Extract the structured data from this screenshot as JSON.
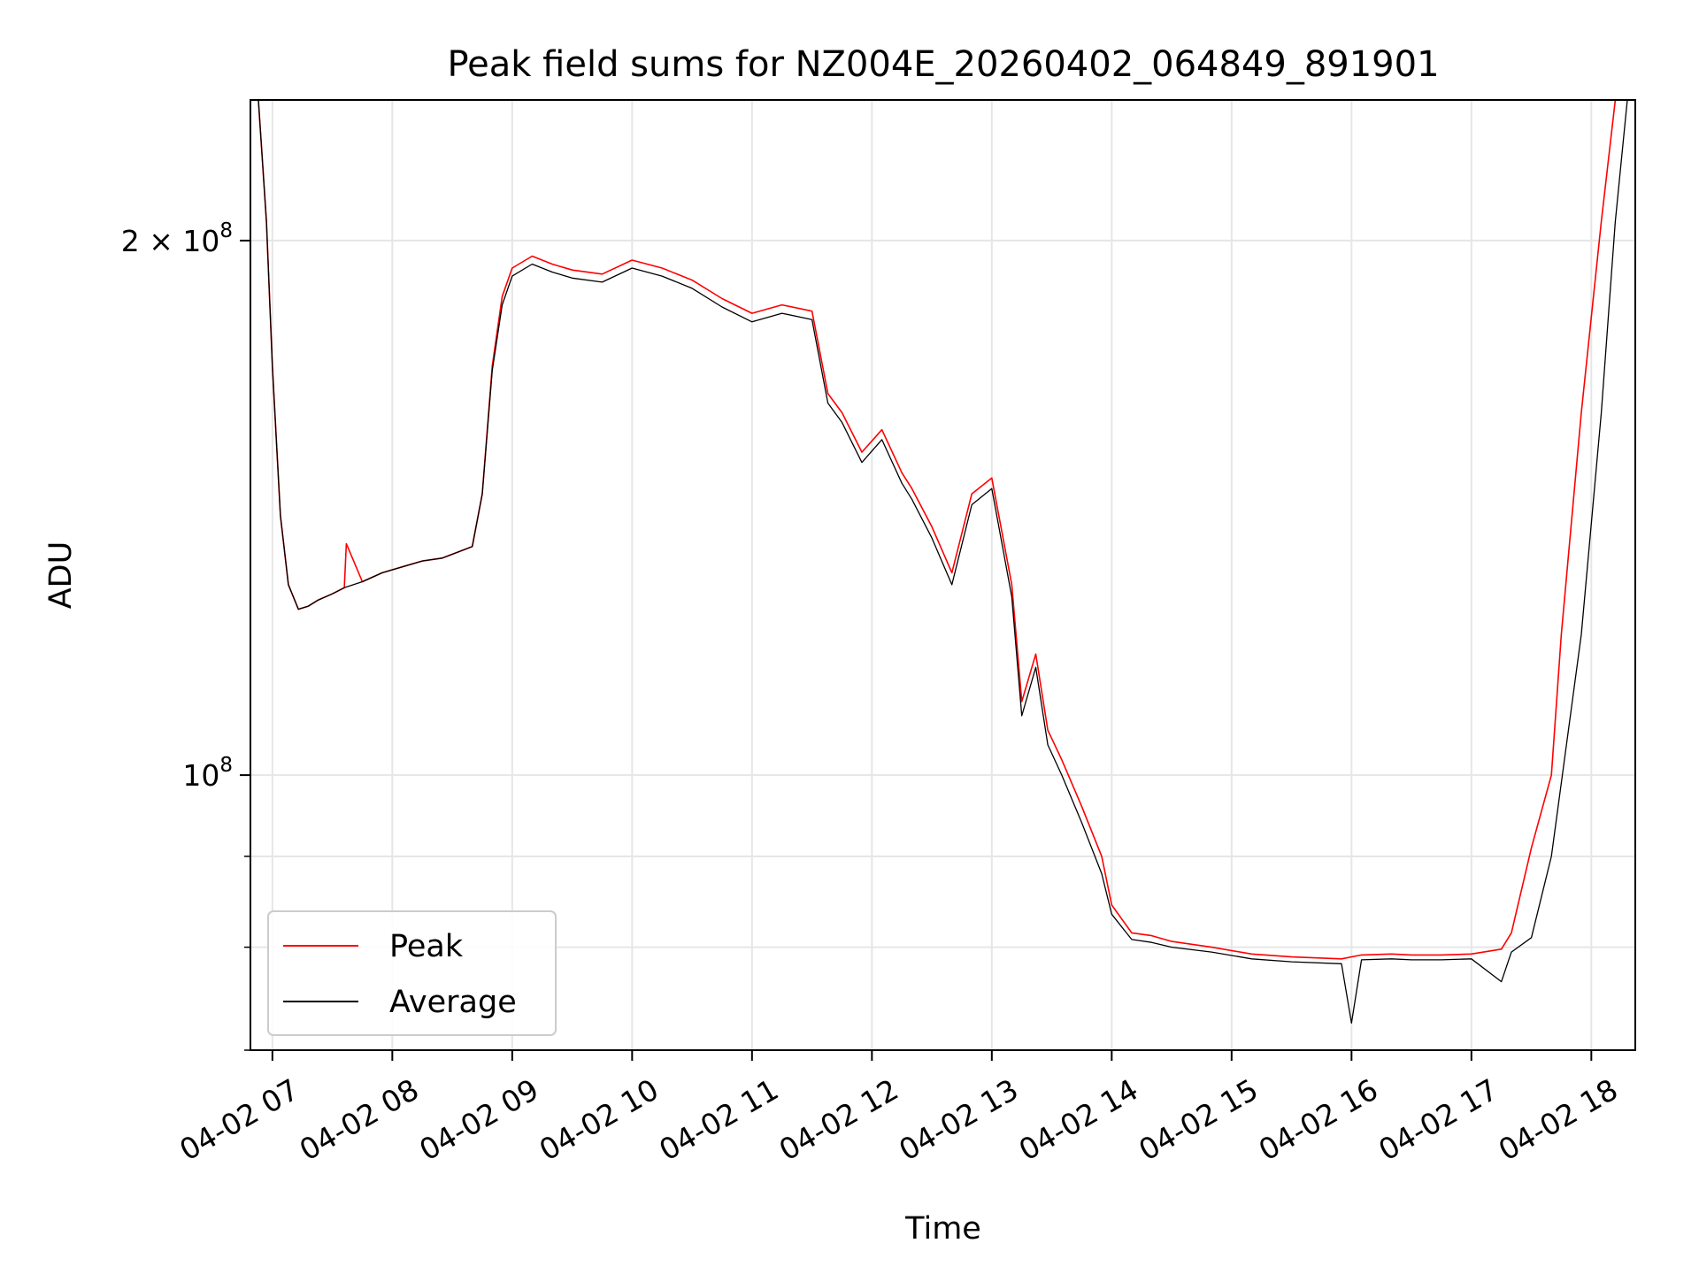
{
  "chart_data": {
    "type": "line",
    "title": "Peak field sums for NZ004E_20260402_064849_891901",
    "xlabel": "Time",
    "ylabel": "ADU",
    "y_scale": "log",
    "grid": true,
    "legend_position": "lower-left",
    "xlim": [
      "04-02 06:49",
      "04-02 18:22"
    ],
    "ylim": [
      70000000,
      240000000
    ],
    "x_ticks": [
      "04-02 07",
      "04-02 08",
      "04-02 09",
      "04-02 10",
      "04-02 11",
      "04-02 12",
      "04-02 13",
      "04-02 14",
      "04-02 15",
      "04-02 16",
      "04-02 17",
      "04-02 18"
    ],
    "y_ticks": [
      {
        "value": 100000000,
        "base": "10",
        "exp": "8",
        "coef": ""
      },
      {
        "value": 200000000,
        "base": "10",
        "exp": "8",
        "coef": "2 × "
      }
    ],
    "y_minor_ticks": [
      70000000,
      80000000,
      90000000
    ],
    "series": [
      {
        "name": "Peak",
        "color": "#ff0000",
        "x": [
          "06:53",
          "06:57",
          "07:00",
          "07:04",
          "07:08",
          "07:13",
          "07:18",
          "07:23",
          "07:30",
          "07:36",
          "07:37",
          "07:45",
          "07:55",
          "08:05",
          "08:15",
          "08:25",
          "08:40",
          "08:45",
          "08:50",
          "08:55",
          "09:00",
          "09:10",
          "09:20",
          "09:30",
          "09:45",
          "10:00",
          "10:15",
          "10:30",
          "10:45",
          "11:00",
          "11:15",
          "11:30",
          "11:38",
          "11:45",
          "11:55",
          "12:05",
          "12:15",
          "12:20",
          "12:30",
          "12:40",
          "12:50",
          "13:00",
          "13:10",
          "13:15",
          "13:22",
          "13:28",
          "13:35",
          "13:45",
          "13:55",
          "14:00",
          "14:10",
          "14:20",
          "14:30",
          "14:50",
          "15:10",
          "15:30",
          "15:55",
          "16:05",
          "16:20",
          "16:30",
          "16:45",
          "17:00",
          "17:15",
          "17:20",
          "17:30",
          "17:40",
          "17:45",
          "17:55",
          "18:05",
          "18:12",
          "18:18",
          "18:22"
        ],
        "y": [
          240000000,
          205000000,
          170000000,
          140000000,
          128000000,
          124000000,
          124500000,
          125500000,
          126500000,
          127500000,
          135000000,
          128500000,
          130000000,
          131000000,
          132000000,
          132500000,
          134500000,
          144000000,
          170000000,
          186000000,
          193000000,
          196000000,
          194000000,
          192500000,
          191500000,
          195000000,
          193000000,
          190000000,
          185500000,
          182000000,
          184000000,
          182500000,
          164000000,
          160000000,
          152000000,
          156500000,
          148000000,
          145000000,
          138000000,
          130000000,
          144000000,
          147000000,
          128000000,
          110000000,
          117000000,
          106000000,
          102000000,
          96000000,
          90000000,
          84500000,
          81500000,
          81200000,
          80600000,
          80000000,
          79300000,
          79000000,
          78800000,
          79200000,
          79300000,
          79200000,
          79200000,
          79300000,
          79800000,
          81500000,
          91000000,
          100000000,
          120000000,
          160000000,
          205000000,
          240000000,
          240000000,
          240000000
        ]
      },
      {
        "name": "Average",
        "color": "#000000",
        "x": [
          "06:53",
          "06:57",
          "07:00",
          "07:04",
          "07:08",
          "07:13",
          "07:18",
          "07:23",
          "07:30",
          "07:36",
          "07:45",
          "07:55",
          "08:05",
          "08:15",
          "08:25",
          "08:40",
          "08:45",
          "08:50",
          "08:55",
          "09:00",
          "09:10",
          "09:20",
          "09:30",
          "09:45",
          "10:00",
          "10:15",
          "10:30",
          "10:45",
          "11:00",
          "11:15",
          "11:30",
          "11:38",
          "11:45",
          "11:55",
          "12:05",
          "12:15",
          "12:20",
          "12:30",
          "12:40",
          "12:50",
          "13:00",
          "13:10",
          "13:15",
          "13:22",
          "13:28",
          "13:35",
          "13:45",
          "13:55",
          "14:00",
          "14:10",
          "14:20",
          "14:30",
          "14:50",
          "15:10",
          "15:30",
          "15:55",
          "16:00",
          "16:05",
          "16:20",
          "16:30",
          "16:45",
          "17:00",
          "17:15",
          "17:20",
          "17:30",
          "17:40",
          "17:45",
          "17:55",
          "18:05",
          "18:12",
          "18:18",
          "18:22"
        ],
        "y": [
          240000000,
          205000000,
          170000000,
          140000000,
          128000000,
          124000000,
          124500000,
          125500000,
          126500000,
          127500000,
          128500000,
          130000000,
          131000000,
          132000000,
          132500000,
          134500000,
          144000000,
          169000000,
          184000000,
          191000000,
          194000000,
          192000000,
          190500000,
          189500000,
          193000000,
          191000000,
          188000000,
          183500000,
          180000000,
          182000000,
          180500000,
          162000000,
          158000000,
          150000000,
          154500000,
          146000000,
          143000000,
          136000000,
          128000000,
          142000000,
          145000000,
          126000000,
          108000000,
          115000000,
          104000000,
          100000000,
          94000000,
          88000000,
          83500000,
          80800000,
          80500000,
          80000000,
          79500000,
          78800000,
          78500000,
          78300000,
          72500000,
          78700000,
          78800000,
          78700000,
          78700000,
          78800000,
          76500000,
          79500000,
          81000000,
          90000000,
          99000000,
          120000000,
          160000000,
          205000000,
          240000000,
          240000000
        ]
      }
    ]
  }
}
